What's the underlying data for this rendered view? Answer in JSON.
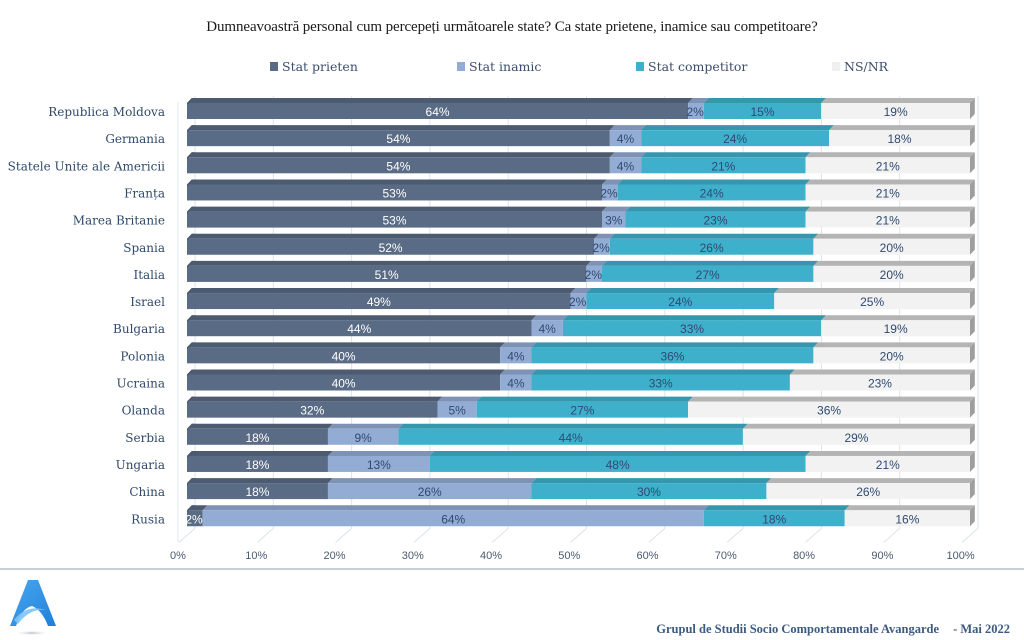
{
  "chart_data": {
    "type": "bar",
    "orientation": "horizontal",
    "stacked": "percent",
    "style": "3d",
    "title": "Dumneavoastră personal cum percepeți următoarele state? Ca state prietene, inamice sau competitoare?",
    "xlabel": "",
    "ylabel": "",
    "xlim": [
      0,
      100
    ],
    "x_ticks": [
      "0%",
      "10%",
      "20%",
      "30%",
      "40%",
      "50%",
      "60%",
      "70%",
      "80%",
      "90%",
      "100%"
    ],
    "grid": true,
    "legend_position": "top",
    "categories": [
      "Republica Moldova",
      "Germania",
      "Statele Unite ale Americii",
      "Franța",
      "Marea Britanie",
      "Spania",
      "Italia",
      "Israel",
      "Bulgaria",
      "Polonia",
      "Ucraina",
      "Olanda",
      "Serbia",
      "Ungaria",
      "China",
      "Rusia"
    ],
    "series": [
      {
        "name": "Stat prieten",
        "color": "#5a6b85",
        "label_color": "#ffffff",
        "values": [
          64,
          54,
          54,
          53,
          53,
          52,
          51,
          49,
          44,
          40,
          40,
          32,
          18,
          18,
          18,
          2
        ]
      },
      {
        "name": "Stat inamic",
        "color": "#93acd4",
        "label_color": "#2f4a72",
        "values": [
          2,
          4,
          4,
          2,
          3,
          2,
          2,
          2,
          4,
          4,
          4,
          5,
          9,
          13,
          26,
          64
        ]
      },
      {
        "name": "Stat competitor",
        "color": "#3fb0cc",
        "label_color": "#2f4a72",
        "values": [
          15,
          24,
          21,
          24,
          23,
          26,
          27,
          24,
          33,
          36,
          33,
          27,
          44,
          48,
          30,
          18
        ]
      },
      {
        "name": "NS/NR",
        "color": "#f2f2f2",
        "label_color": "#2f4a72",
        "values": [
          19,
          18,
          21,
          21,
          21,
          20,
          20,
          25,
          19,
          20,
          23,
          36,
          29,
          21,
          26,
          16
        ]
      }
    ]
  },
  "footer": {
    "organization": "Grupul de Studii Socio Comportamentale Avangarde",
    "date": "- Mai 2022"
  },
  "logo": {
    "icon": "avangarde-a-logo",
    "color": "#2f8fe0"
  }
}
